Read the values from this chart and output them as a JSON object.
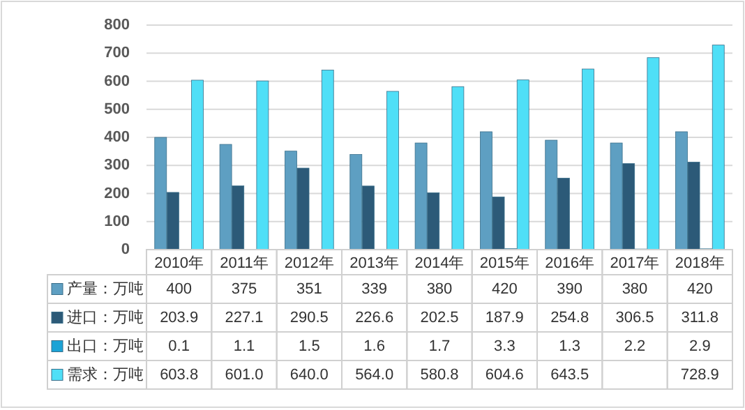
{
  "chart_data": {
    "type": "bar",
    "categories": [
      "2010年",
      "2011年",
      "2012年",
      "2013年",
      "2014年",
      "2015年",
      "2016年",
      "2017年",
      "2018年"
    ],
    "series": [
      {
        "name": "产量：万吨",
        "color": "#5e9fc2",
        "values": [
          400,
          375,
          351,
          339,
          380,
          420,
          390,
          380,
          420
        ],
        "value_labels": [
          "400",
          "375",
          "351",
          "339",
          "380",
          "420",
          "390",
          "380",
          "420"
        ]
      },
      {
        "name": "进口：万吨",
        "color": "#2c5a78",
        "values": [
          203.9,
          227.1,
          290.5,
          226.6,
          202.5,
          187.9,
          254.8,
          306.5,
          311.8
        ],
        "value_labels": [
          "203.9",
          "227.1",
          "290.5",
          "226.6",
          "202.5",
          "187.9",
          "254.8",
          "306.5",
          "311.8"
        ]
      },
      {
        "name": "出口：万吨",
        "color": "#1ca3d6",
        "values": [
          0.1,
          1.1,
          1.5,
          1.6,
          1.7,
          3.3,
          1.3,
          2.2,
          2.9
        ],
        "value_labels": [
          "0.1",
          "1.1",
          "1.5",
          "1.6",
          "1.7",
          "3.3",
          "1.3",
          "2.2",
          "2.9"
        ]
      },
      {
        "name": "需求：万吨",
        "color": "#4fdff7",
        "values": [
          603.8,
          601.0,
          640.0,
          564.0,
          580.8,
          604.6,
          643.5,
          684,
          728.9
        ],
        "value_labels": [
          "603.8",
          "601.0",
          "640.0",
          "564.0",
          "580.8",
          "604.6",
          "643.5",
          null,
          "728.9"
        ]
      }
    ],
    "ylim": [
      0,
      800
    ],
    "yticks": [
      0,
      100,
      200,
      300,
      400,
      500,
      600,
      700,
      800
    ],
    "grid": "y",
    "legend": "bottom"
  }
}
